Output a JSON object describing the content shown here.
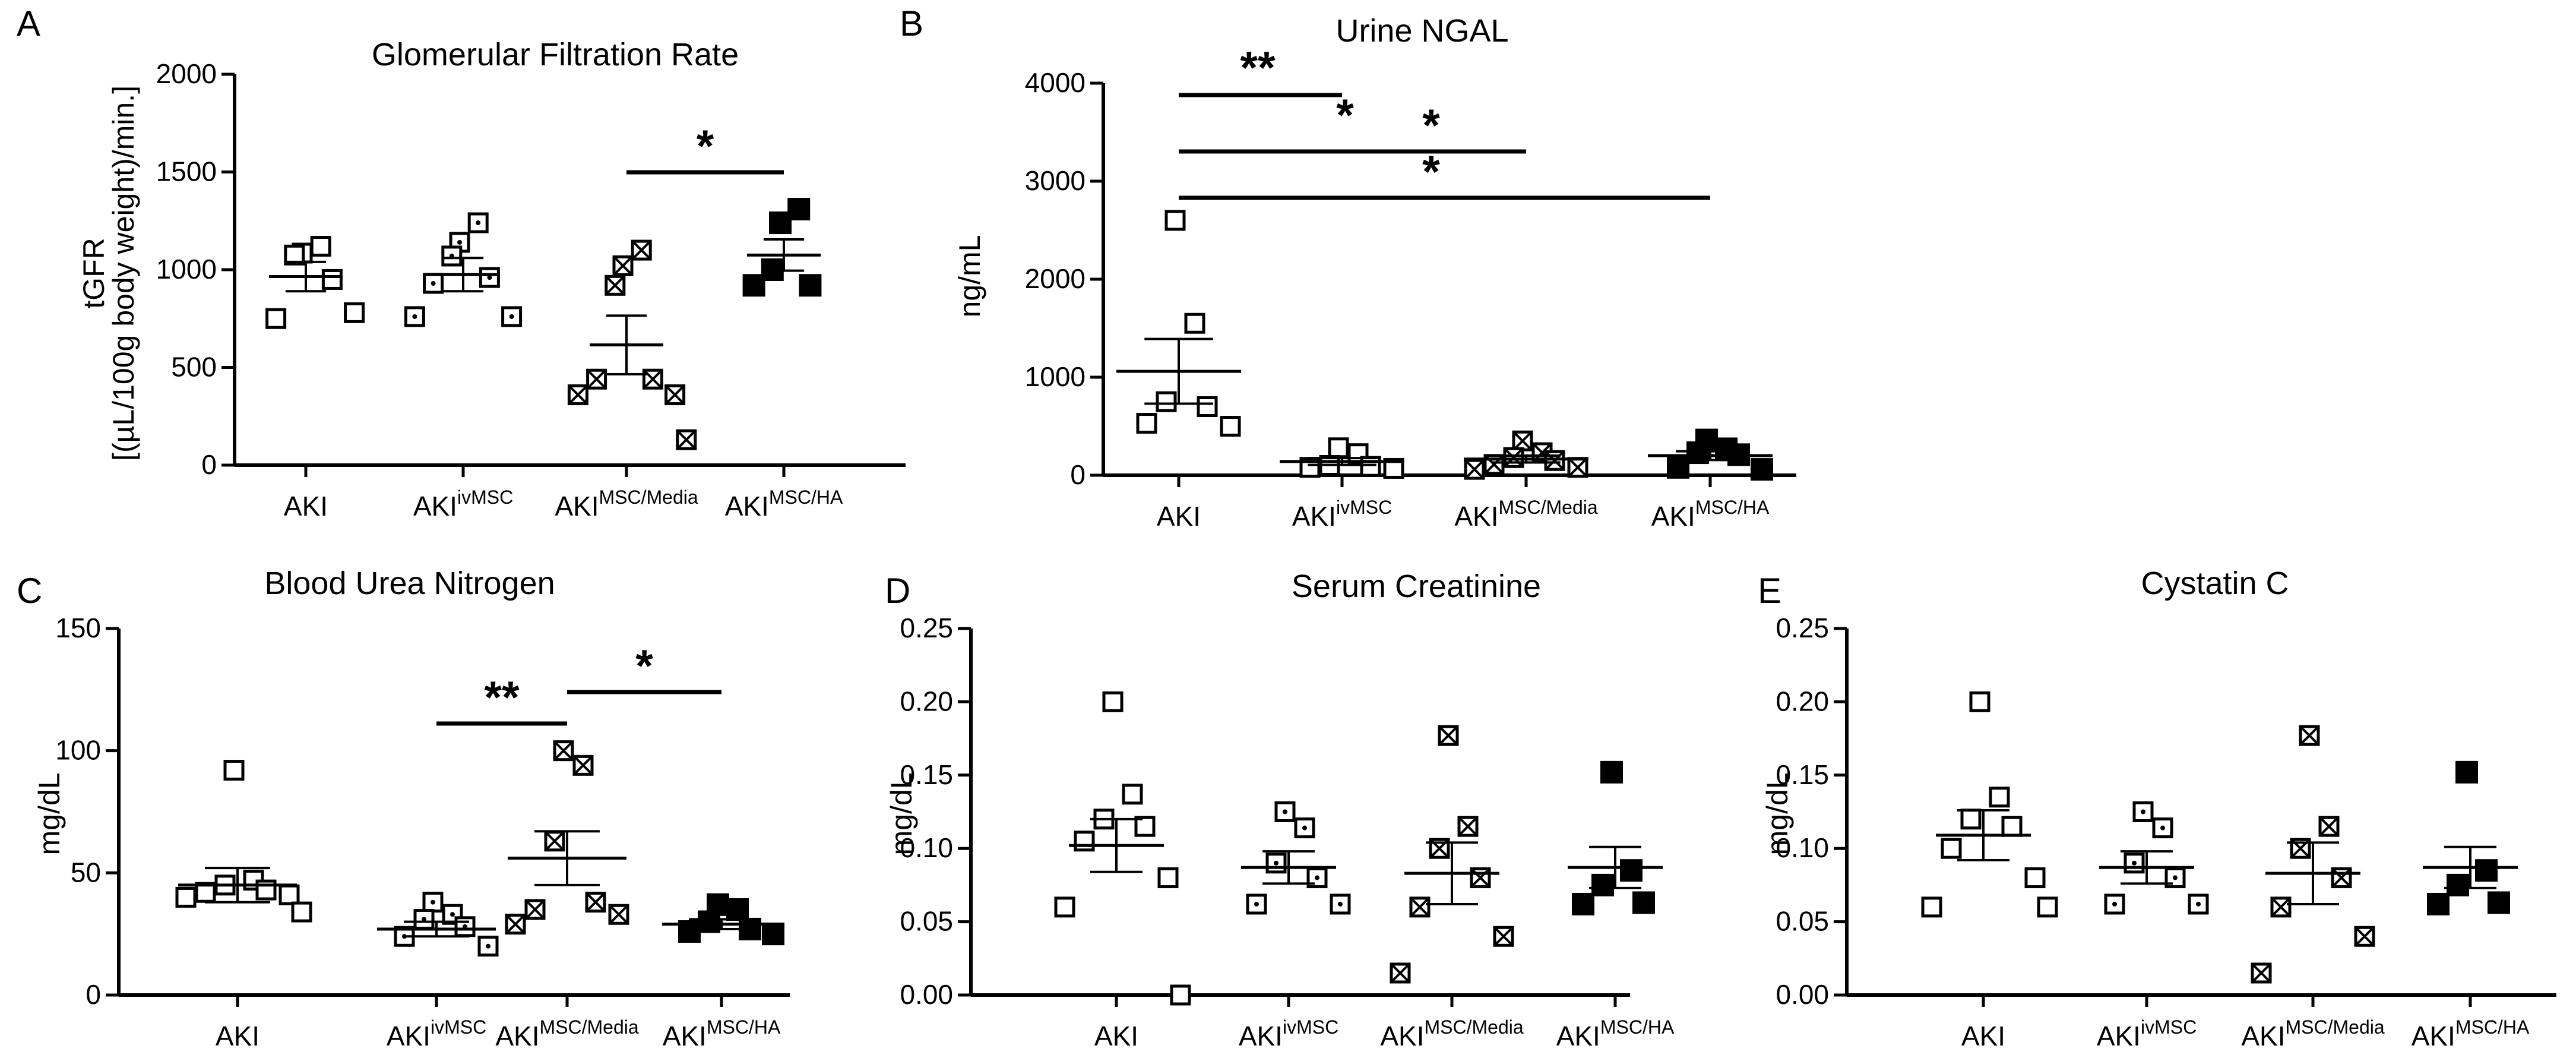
{
  "figure": {
    "colors": {
      "ink": "#000000",
      "background": "#ffffff"
    }
  },
  "chart_data": [
    {
      "panel": "A",
      "type": "scatter",
      "title": "Glomerular Filtration Rate",
      "ylabel_lines": [
        "tGFR",
        "[(µL/100g body weight)/min.]"
      ],
      "xlabel": "",
      "ylim": [
        0,
        2000
      ],
      "yticks": [
        "0",
        "500",
        "1000",
        "1500",
        "2000"
      ],
      "tick_values": [
        0,
        500,
        1000,
        1500,
        2000
      ],
      "groups": [
        {
          "label": "AKI",
          "sup": "",
          "marker": "open-square",
          "points": [
            1085,
            1120,
            1075,
            950,
            750,
            780
          ],
          "mean": 965,
          "sem": 75
        },
        {
          "label": "AKI",
          "sup": "ivMSC",
          "marker": "dot-square",
          "points": [
            1140,
            1240,
            1070,
            960,
            930,
            760,
            760
          ],
          "mean": 975,
          "sem": 85
        },
        {
          "label": "AKI",
          "sup": "MSC/Media",
          "marker": "cross-square",
          "points": [
            1020,
            1100,
            920,
            440,
            440,
            360,
            360,
            130
          ],
          "mean": 615,
          "sem": 150
        },
        {
          "label": "AKI",
          "sup": "MSC/HA",
          "marker": "filled-square",
          "points": [
            1240,
            1310,
            1000,
            920,
            920
          ],
          "mean": 1075,
          "sem": 80
        }
      ],
      "significance": [
        {
          "from": 2,
          "to": 3,
          "label": "*"
        }
      ]
    },
    {
      "panel": "B",
      "type": "scatter",
      "title": "Urine NGAL",
      "ylabel_lines": [
        "ng/mL"
      ],
      "xlabel": "",
      "ylim": [
        0,
        4000
      ],
      "yticks": [
        "0",
        "1000",
        "2000",
        "3000",
        "4000"
      ],
      "tick_values": [
        0,
        1000,
        2000,
        3000,
        4000
      ],
      "groups": [
        {
          "label": "AKI",
          "sup": "",
          "marker": "open-square",
          "points": [
            2600,
            1550,
            750,
            700,
            530,
            500
          ],
          "mean": 1060,
          "sem": 330
        },
        {
          "label": "AKI",
          "sup": "ivMSC",
          "marker": "open-square",
          "points": [
            280,
            220,
            100,
            90,
            80,
            70
          ],
          "mean": 140,
          "sem": 35
        },
        {
          "label": "AKI",
          "sup": "MSC/Media",
          "marker": "cross-square",
          "points": [
            350,
            230,
            180,
            150,
            110,
            80,
            60
          ],
          "mean": 165,
          "sem": 35
        },
        {
          "label": "AKI",
          "sup": "MSC/HA",
          "marker": "filled-square",
          "points": [
            360,
            270,
            230,
            210,
            80,
            60
          ],
          "mean": 200,
          "sem": 45
        }
      ],
      "significance": [
        {
          "from": 0,
          "to": 1,
          "label": "**",
          "label2": "*"
        },
        {
          "from": 0,
          "to": 2,
          "label": "*",
          "label2": "*"
        },
        {
          "from": 0,
          "to": 3,
          "label": "*"
        }
      ]
    },
    {
      "panel": "C",
      "type": "scatter",
      "title": "Blood Urea Nitrogen",
      "ylabel_lines": [
        "mg/dL"
      ],
      "xlabel": "",
      "ylim": [
        0,
        150
      ],
      "yticks": [
        "0",
        "50",
        "100",
        "150"
      ],
      "tick_values": [
        0,
        50,
        100,
        150
      ],
      "groups": [
        {
          "label": "AKI",
          "sup": "",
          "marker": "open-square",
          "points": [
            92,
            47,
            45,
            43,
            42,
            41,
            40,
            34
          ],
          "mean": 45,
          "sem": 7
        },
        {
          "label": "AKI",
          "sup": "ivMSC",
          "marker": "dot-square",
          "points": [
            38,
            33,
            31,
            28,
            24,
            20
          ],
          "mean": 27,
          "sem": 3
        },
        {
          "label": "AKI",
          "sup": "MSC/Media",
          "marker": "cross-square",
          "points": [
            100,
            94,
            63,
            38,
            35,
            33,
            29
          ],
          "mean": 56,
          "sem": 11
        },
        {
          "label": "AKI",
          "sup": "MSC/HA",
          "marker": "filled-square",
          "points": [
            37,
            35,
            30,
            27,
            26,
            25
          ],
          "mean": 29,
          "sem": 2
        }
      ],
      "significance": [
        {
          "from": 1,
          "to": 2,
          "label": "**"
        },
        {
          "from": 2,
          "to": 3,
          "label": "*"
        }
      ]
    },
    {
      "panel": "D",
      "type": "scatter",
      "title": "Serum Creatinine",
      "ylabel_lines": [
        "mg/dL"
      ],
      "xlabel": "",
      "ylim": [
        0,
        0.25
      ],
      "yticks": [
        "0.00",
        "0.05",
        "0.10",
        "0.15",
        "0.20",
        "0.25"
      ],
      "tick_values": [
        0,
        0.05,
        0.1,
        0.15,
        0.2,
        0.25
      ],
      "groups": [
        {
          "label": "AKI",
          "sup": "",
          "marker": "open-square",
          "points": [
            0.2,
            0.137,
            0.12,
            0.115,
            0.105,
            0.08,
            0.06,
            0.0
          ],
          "mean": 0.102,
          "sem": 0.018
        },
        {
          "label": "AKI",
          "sup": "ivMSC",
          "marker": "dot-square",
          "points": [
            0.125,
            0.114,
            0.09,
            0.08,
            0.062,
            0.062
          ],
          "mean": 0.087,
          "sem": 0.011
        },
        {
          "label": "AKI",
          "sup": "MSC/Media",
          "marker": "cross-square",
          "points": [
            0.177,
            0.115,
            0.1,
            0.08,
            0.06,
            0.04,
            0.015
          ],
          "mean": 0.083,
          "sem": 0.021
        },
        {
          "label": "AKI",
          "sup": "MSC/HA",
          "marker": "filled-square",
          "points": [
            0.152,
            0.085,
            0.075,
            0.063,
            0.062
          ],
          "mean": 0.087,
          "sem": 0.014
        }
      ],
      "significance": []
    },
    {
      "panel": "E",
      "type": "scatter",
      "title": "Cystatin C",
      "ylabel_lines": [
        "mg/dL"
      ],
      "xlabel": "",
      "ylim": [
        0,
        0.25
      ],
      "yticks": [
        "0.00",
        "0.05",
        "0.10",
        "0.15",
        "0.20",
        "0.25"
      ],
      "tick_values": [
        0,
        0.05,
        0.1,
        0.15,
        0.2,
        0.25
      ],
      "groups": [
        {
          "label": "AKI",
          "sup": "",
          "marker": "open-square",
          "points": [
            0.2,
            0.135,
            0.12,
            0.115,
            0.1,
            0.08,
            0.06,
            0.06
          ],
          "mean": 0.109,
          "sem": 0.017
        },
        {
          "label": "AKI",
          "sup": "ivMSC",
          "marker": "dot-square",
          "points": [
            0.125,
            0.114,
            0.09,
            0.08,
            0.062,
            0.062
          ],
          "mean": 0.087,
          "sem": 0.011
        },
        {
          "label": "AKI",
          "sup": "MSC/Media",
          "marker": "cross-square",
          "points": [
            0.177,
            0.115,
            0.1,
            0.08,
            0.06,
            0.04,
            0.015
          ],
          "mean": 0.083,
          "sem": 0.021
        },
        {
          "label": "AKI",
          "sup": "MSC/HA",
          "marker": "filled-square",
          "points": [
            0.152,
            0.085,
            0.075,
            0.063,
            0.062
          ],
          "mean": 0.087,
          "sem": 0.014
        }
      ],
      "significance": []
    }
  ]
}
